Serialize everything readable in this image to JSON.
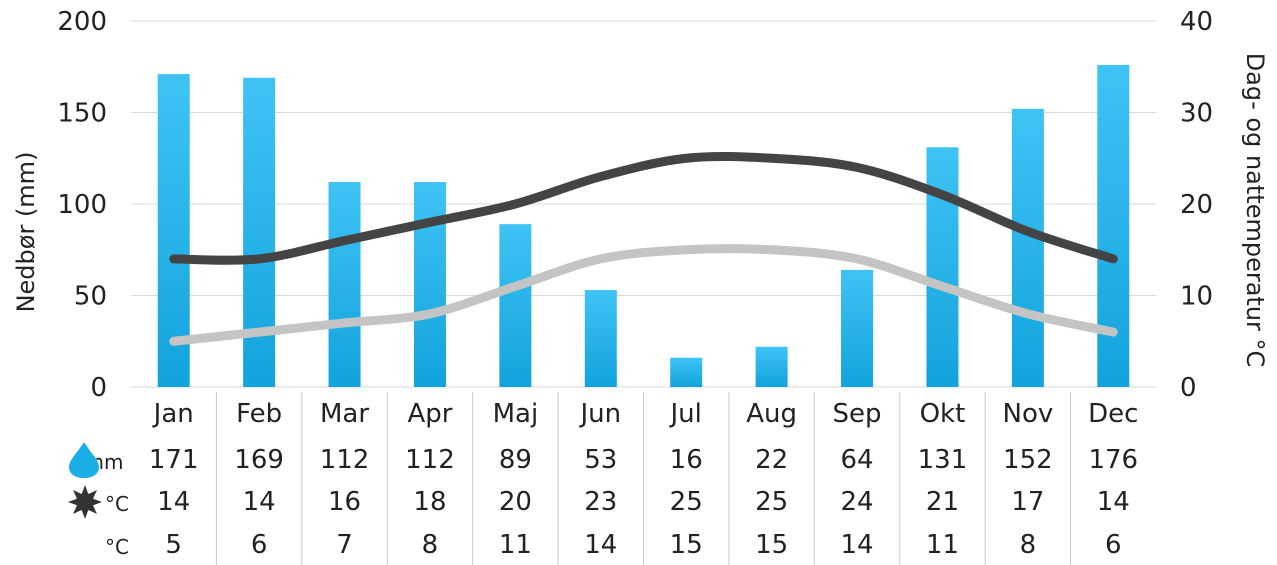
{
  "chart_data": {
    "type": "bar",
    "categories": [
      "Jan",
      "Feb",
      "Mar",
      "Apr",
      "Maj",
      "Jun",
      "Jul",
      "Aug",
      "Sep",
      "Okt",
      "Nov",
      "Dec"
    ],
    "series": [
      {
        "values": [
          171,
          169,
          112,
          112,
          89,
          53,
          16,
          22,
          64,
          131,
          152,
          176
        ],
        "axis": "left",
        "type": "bar",
        "color": "#1aaee6"
      },
      {
        "values": [
          14,
          14,
          16,
          18,
          20,
          23,
          25,
          25,
          24,
          21,
          17,
          14
        ],
        "axis": "right",
        "type": "line",
        "color": "#444444"
      },
      {
        "values": [
          5,
          6,
          7,
          8,
          11,
          14,
          15,
          15,
          14,
          11,
          8,
          6
        ],
        "axis": "right",
        "type": "line",
        "color": "#c4c4c4"
      }
    ],
    "ylabel": "Nedbør (mm)",
    "ylabel_right": "Dag- og nattemperatur °C",
    "ylim": [
      0,
      200
    ],
    "ylim_right": [
      0,
      40
    ],
    "yticks": [
      "0",
      "50",
      "100",
      "150",
      "200"
    ],
    "yticks_right": [
      "0",
      "10",
      "20",
      "30",
      "40"
    ],
    "grid": true,
    "table": {
      "rows": [
        {
          "icon": "raindrop-icon",
          "unit": "mm",
          "color": "#1aaee6"
        },
        {
          "icon": "sun-icon",
          "unit": "°C",
          "color": "#333333"
        },
        {
          "icon": "moon-icon",
          "unit": "°C",
          "color": "#bbbbbb"
        }
      ],
      "values": [
        [
          "171",
          "169",
          "112",
          "112",
          "89",
          "53",
          "16",
          "22",
          "64",
          "131",
          "152",
          "176"
        ],
        [
          "14",
          "14",
          "16",
          "18",
          "20",
          "23",
          "25",
          "25",
          "24",
          "21",
          "17",
          "14"
        ],
        [
          "5",
          "6",
          "7",
          "8",
          "11",
          "14",
          "15",
          "15",
          "14",
          "11",
          "8",
          "6"
        ]
      ]
    }
  }
}
